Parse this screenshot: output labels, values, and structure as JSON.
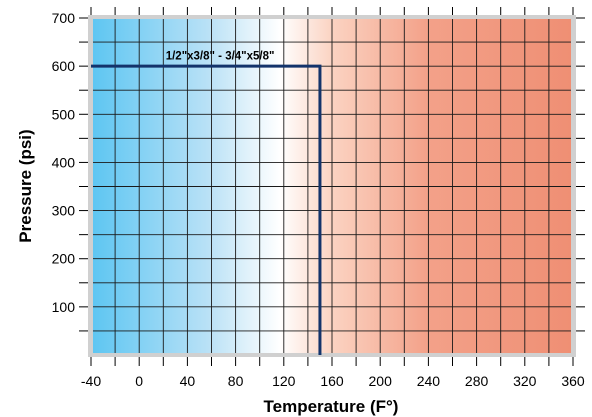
{
  "chart_data": {
    "type": "line",
    "title": "",
    "xlabel": "Temperature (F°)",
    "ylabel": "Pressure (psi)",
    "xlim": [
      -40,
      360
    ],
    "ylim": [
      0,
      700
    ],
    "x_ticks": [
      -40,
      0,
      40,
      80,
      120,
      160,
      200,
      240,
      280,
      320,
      360
    ],
    "y_ticks": [
      100,
      200,
      300,
      400,
      500,
      600,
      700
    ],
    "grid": true,
    "background": "temperature gradient: blue (cold) to white to red (hot)",
    "series": [
      {
        "name": "1/2\"x3/8\" - 3/4\"x5/8\"",
        "color": "#13336b",
        "x": [
          -40,
          150,
          150
        ],
        "y": [
          600,
          600,
          0
        ]
      }
    ],
    "annotations": [
      {
        "text": "1/2\"x3/8\" - 3/4\"x5/8\"",
        "x": 22,
        "y": 614
      }
    ]
  }
}
